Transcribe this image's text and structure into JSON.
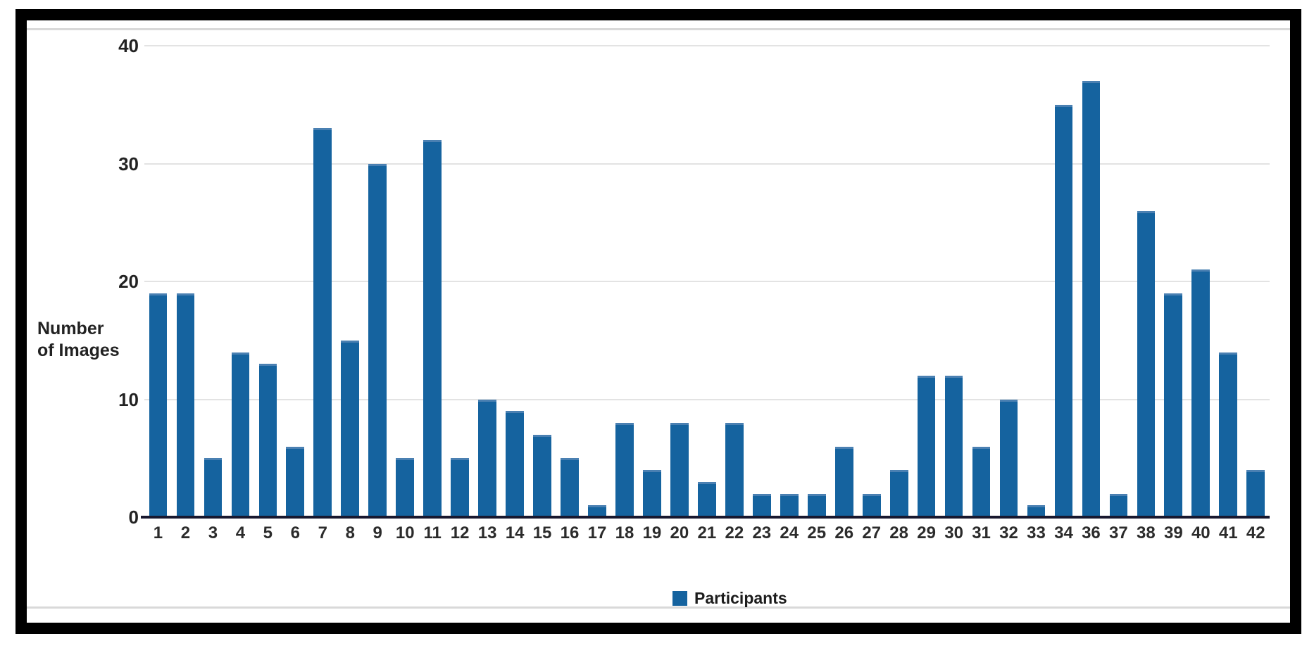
{
  "chart_data": {
    "type": "bar",
    "title": "",
    "ylabel": "Number of Images",
    "ylabel_lines": [
      "Number",
      "of Images"
    ],
    "xlabel": "",
    "categories": [
      "1",
      "2",
      "3",
      "4",
      "5",
      "6",
      "7",
      "8",
      "9",
      "10",
      "11",
      "12",
      "13",
      "14",
      "15",
      "16",
      "17",
      "18",
      "19",
      "20",
      "21",
      "22",
      "23",
      "24",
      "25",
      "26",
      "27",
      "28",
      "29",
      "30",
      "31",
      "32",
      "33",
      "34",
      "36",
      "37",
      "38",
      "39",
      "40",
      "41",
      "42"
    ],
    "values": [
      19,
      19,
      5,
      14,
      13,
      6,
      33,
      15,
      30,
      5,
      32,
      5,
      10,
      9,
      7,
      5,
      1,
      8,
      4,
      8,
      3,
      8,
      2,
      2,
      2,
      6,
      2,
      4,
      12,
      12,
      6,
      10,
      1,
      35,
      37,
      2,
      26,
      19,
      21,
      14,
      4
    ],
    "yticks": [
      0,
      10,
      20,
      30,
      40
    ],
    "ylim": [
      0,
      40
    ],
    "grid": true,
    "legend": {
      "label": "Participants",
      "position": "bottom-center"
    },
    "colors": {
      "bar": "#15639F",
      "bar_top_edge": "#4A80B2",
      "grid": "#E3E3E3",
      "axis": "#18182F",
      "text": "#222222",
      "frame": "#000000",
      "panel_edge_line": "#D9D9D9"
    }
  }
}
